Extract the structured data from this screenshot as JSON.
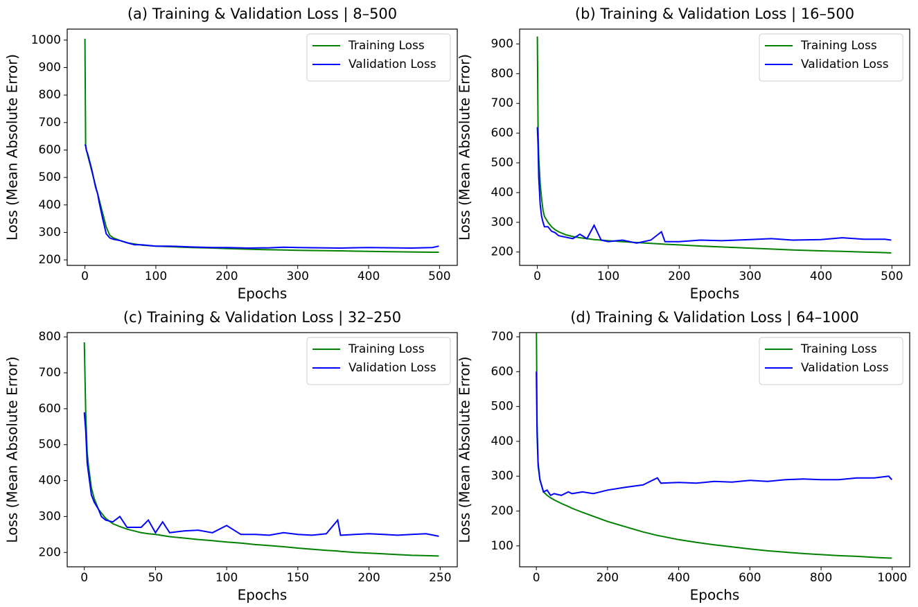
{
  "chart_data": [
    {
      "type": "line",
      "title": "(a) Training & Validation Loss | 8–500",
      "x_label": "Epochs",
      "y_label": "Loss (Mean Absolute Error)",
      "x": [
        0,
        1,
        2,
        4,
        6,
        8,
        10,
        12,
        15,
        18,
        20,
        25,
        30,
        35,
        40,
        50,
        60,
        70,
        80,
        100,
        120,
        150,
        180,
        200,
        230,
        260,
        280,
        300,
        330,
        360,
        400,
        430,
        460,
        490,
        499
      ],
      "series": [
        {
          "name": "Training Loss",
          "color": "#008000",
          "values": [
            1005,
            620,
            600,
            580,
            560,
            540,
            520,
            500,
            470,
            440,
            420,
            370,
            320,
            290,
            280,
            270,
            262,
            258,
            254,
            250,
            248,
            245,
            243,
            241,
            239,
            237,
            236,
            235,
            234,
            233,
            231,
            230,
            229,
            228,
            228
          ]
        },
        {
          "name": "Validation Loss",
          "color": "#0000ff",
          "values": [
            620,
            615,
            600,
            585,
            565,
            545,
            525,
            500,
            465,
            440,
            410,
            350,
            295,
            280,
            275,
            270,
            262,
            255,
            255,
            250,
            250,
            247,
            245,
            245,
            243,
            244,
            246,
            245,
            244,
            243,
            245,
            244,
            243,
            245,
            250
          ]
        }
      ],
      "xlim": [
        -25,
        525
      ],
      "ylim": [
        180,
        1040
      ],
      "xticks": [
        0,
        100,
        200,
        300,
        400,
        500
      ],
      "yticks": [
        200,
        300,
        400,
        500,
        600,
        700,
        800,
        900,
        1000
      ],
      "legend": "upper right"
    },
    {
      "type": "line",
      "title": "(b) Training & Validation Loss | 16–500",
      "x_label": "Epochs",
      "y_label": "Loss (Mean Absolute Error)",
      "x": [
        0,
        1,
        2,
        4,
        6,
        8,
        10,
        15,
        20,
        25,
        30,
        40,
        50,
        60,
        70,
        80,
        90,
        100,
        120,
        140,
        160,
        175,
        180,
        200,
        230,
        260,
        300,
        330,
        360,
        400,
        430,
        460,
        490,
        499
      ],
      "series": [
        {
          "name": "Training Loss",
          "color": "#008000",
          "values": [
            925,
            620,
            520,
            430,
            380,
            340,
            320,
            300,
            285,
            275,
            268,
            258,
            252,
            248,
            245,
            242,
            240,
            238,
            235,
            232,
            229,
            227,
            226,
            224,
            220,
            217,
            213,
            210,
            207,
            204,
            202,
            200,
            198,
            197
          ]
        },
        {
          "name": "Validation Loss",
          "color": "#0000ff",
          "values": [
            620,
            560,
            450,
            360,
            320,
            300,
            285,
            285,
            270,
            265,
            255,
            250,
            245,
            260,
            245,
            290,
            240,
            235,
            240,
            230,
            240,
            268,
            235,
            235,
            240,
            238,
            242,
            245,
            240,
            242,
            248,
            243,
            243,
            240
          ]
        }
      ],
      "xlim": [
        -25,
        525
      ],
      "ylim": [
        155,
        950
      ],
      "xticks": [
        0,
        100,
        200,
        300,
        400,
        500
      ],
      "yticks": [
        200,
        300,
        400,
        500,
        600,
        700,
        800,
        900
      ],
      "legend": "upper right"
    },
    {
      "type": "line",
      "title": "(c) Training & Validation Loss | 32–250",
      "x_label": "Epochs",
      "y_label": "Loss (Mean Absolute Error)",
      "x": [
        0,
        1,
        2,
        3,
        5,
        7,
        10,
        12,
        15,
        20,
        25,
        30,
        40,
        45,
        50,
        55,
        60,
        70,
        80,
        90,
        100,
        110,
        120,
        130,
        140,
        150,
        160,
        170,
        178,
        180,
        190,
        200,
        210,
        220,
        230,
        240,
        249
      ],
      "series": [
        {
          "name": "Training Loss",
          "color": "#008000",
          "values": [
            785,
            590,
            480,
            440,
            380,
            350,
            320,
            310,
            295,
            280,
            272,
            265,
            255,
            252,
            250,
            247,
            244,
            240,
            236,
            233,
            229,
            226,
            222,
            219,
            216,
            212,
            209,
            206,
            204,
            203,
            200,
            198,
            196,
            194,
            192,
            191,
            190
          ]
        },
        {
          "name": "Validation Loss",
          "color": "#0000ff",
          "values": [
            590,
            540,
            450,
            420,
            360,
            340,
            320,
            300,
            290,
            285,
            300,
            270,
            270,
            290,
            255,
            285,
            255,
            260,
            262,
            255,
            275,
            250,
            250,
            248,
            255,
            250,
            248,
            252,
            290,
            248,
            250,
            252,
            250,
            248,
            250,
            252,
            245
          ]
        }
      ],
      "xlim": [
        -12,
        262
      ],
      "ylim": [
        160,
        812
      ],
      "xticks": [
        0,
        50,
        100,
        150,
        200,
        250
      ],
      "yticks": [
        200,
        300,
        400,
        500,
        600,
        700,
        800
      ],
      "legend": "upper right"
    },
    {
      "type": "line",
      "title": "(d) Training & Validation Loss | 64–1000",
      "x_label": "Epochs",
      "y_label": "Loss (Mean Absolute Error)",
      "x": [
        0,
        2,
        5,
        10,
        20,
        30,
        40,
        50,
        70,
        90,
        100,
        130,
        160,
        200,
        250,
        300,
        340,
        350,
        400,
        450,
        500,
        550,
        600,
        650,
        700,
        750,
        800,
        850,
        900,
        950,
        990,
        999
      ],
      "series": [
        {
          "name": "Training Loss",
          "color": "#008000",
          "values": [
            760,
            450,
            340,
            290,
            255,
            245,
            238,
            232,
            222,
            213,
            208,
            196,
            185,
            170,
            155,
            140,
            130,
            128,
            118,
            110,
            103,
            97,
            91,
            86,
            82,
            78,
            75,
            72,
            70,
            67,
            65,
            65
          ]
        },
        {
          "name": "Validation Loss",
          "color": "#0000ff",
          "values": [
            600,
            420,
            330,
            290,
            255,
            260,
            245,
            250,
            245,
            255,
            250,
            255,
            250,
            260,
            268,
            275,
            295,
            280,
            282,
            280,
            285,
            283,
            288,
            285,
            290,
            292,
            290,
            290,
            295,
            295,
            300,
            290
          ]
        }
      ],
      "xlim": [
        -47,
        1049
      ],
      "ylim": [
        40,
        712
      ],
      "xticks": [
        0,
        200,
        400,
        600,
        800,
        1000
      ],
      "yticks": [
        100,
        200,
        300,
        400,
        500,
        600,
        700
      ],
      "legend": "upper right"
    }
  ]
}
